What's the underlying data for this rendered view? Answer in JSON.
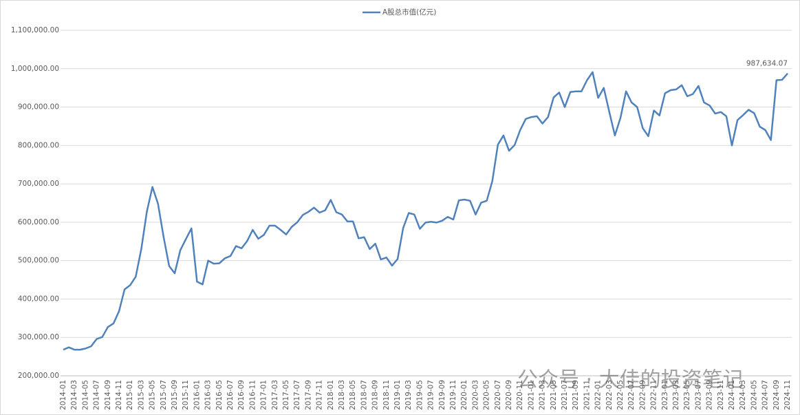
{
  "chart_data": {
    "type": "line",
    "watermark": "公众号 · 大佳的投资笔记",
    "categories": [
      "2014-01",
      null,
      "2014-03",
      null,
      "2014-05",
      null,
      "2014-07",
      null,
      "2014-09",
      null,
      "2014-11",
      null,
      "2015-01",
      null,
      "2015-03",
      null,
      "2015-05",
      null,
      "2015-07",
      null,
      "2015-09",
      null,
      "2015-11",
      null,
      "2016-01",
      null,
      "2016-03",
      null,
      "2016-05",
      null,
      "2016-07",
      null,
      "2016-09",
      null,
      "2016-11",
      null,
      "2017-01",
      null,
      "2017-03",
      null,
      "2017-05",
      null,
      "2017-07",
      null,
      "2017-09",
      null,
      "2017-11",
      null,
      "2018-01",
      null,
      "2018-03",
      null,
      "2018-05",
      null,
      "2018-07",
      null,
      "2018-09",
      null,
      "2018-11",
      null,
      "2019-01",
      null,
      "2019-03",
      null,
      "2019-05",
      null,
      "2019-07",
      null,
      "2019-09",
      null,
      "2019-11",
      null,
      "2020-01",
      null,
      "2020-03",
      null,
      "2020-05",
      null,
      "2020-07",
      null,
      "2020-09",
      null,
      "2020-11",
      null,
      "2021-01",
      null,
      "2021-03",
      null,
      "2021-05",
      null,
      "2021-07",
      null,
      "2021-09",
      null,
      "2021-11",
      null,
      "2022-01",
      null,
      "2022-03",
      null,
      "2022-05",
      null,
      "2022-07",
      null,
      "2022-09",
      null,
      "2022-11",
      null,
      "2023-01",
      null,
      "2023-03",
      null,
      "2023-05",
      null,
      "2023-07",
      null,
      "2023-09",
      null,
      "2023-11",
      null,
      "2024-01",
      null,
      "2024-03",
      null,
      "2024-05",
      null,
      "2024-07",
      null,
      "2024-09",
      null,
      "2024-11"
    ],
    "series": [
      {
        "name": "A股总市值(亿元)",
        "color": "#4f81bd",
        "values": [
          268000,
          274000,
          268000,
          268000,
          271000,
          277000,
          296000,
          301000,
          327000,
          336000,
          368000,
          425000,
          436000,
          458000,
          530000,
          628000,
          692000,
          648000,
          562000,
          486000,
          467000,
          527000,
          556000,
          584000,
          445000,
          438000,
          500000,
          492000,
          493000,
          506000,
          512000,
          538000,
          532000,
          551000,
          580000,
          557000,
          567000,
          591000,
          591000,
          580000,
          568000,
          588000,
          600000,
          619000,
          627000,
          638000,
          625000,
          631000,
          658000,
          626000,
          620000,
          602000,
          602000,
          558000,
          561000,
          530000,
          544000,
          503000,
          508000,
          487000,
          504000,
          585000,
          624000,
          620000,
          583000,
          599000,
          601000,
          599000,
          604000,
          614000,
          607000,
          657000,
          659000,
          656000,
          620000,
          651000,
          656000,
          707000,
          802000,
          826000,
          786000,
          801000,
          840000,
          869000,
          874000,
          876000,
          857000,
          874000,
          925000,
          938000,
          900000,
          939000,
          941000,
          941000,
          970000,
          991000,
          924000,
          950000,
          887000,
          826000,
          872000,
          941000,
          912000,
          900000,
          845000,
          824000,
          891000,
          878000,
          936000,
          944000,
          946000,
          957000,
          928000,
          934000,
          955000,
          912000,
          904000,
          883000,
          887000,
          876000,
          800000,
          866000,
          879000,
          893000,
          884000,
          849000,
          840000,
          814000,
          970000,
          971000,
          987634.07
        ],
        "value_labels": [
          null,
          null,
          null,
          null,
          null,
          null,
          null,
          null,
          null,
          null,
          null,
          null,
          null,
          null,
          null,
          null,
          null,
          null,
          null,
          null,
          null,
          null,
          null,
          null,
          null,
          null,
          null,
          null,
          null,
          null,
          null,
          null,
          null,
          null,
          null,
          null,
          null,
          null,
          null,
          null,
          null,
          null,
          null,
          null,
          null,
          null,
          null,
          null,
          null,
          null,
          null,
          null,
          null,
          null,
          null,
          null,
          null,
          null,
          null,
          null,
          null,
          null,
          null,
          null,
          null,
          null,
          null,
          null,
          null,
          null,
          null,
          null,
          null,
          null,
          null,
          null,
          null,
          null,
          null,
          null,
          null,
          null,
          null,
          null,
          null,
          null,
          null,
          null,
          null,
          null,
          null,
          null,
          null,
          null,
          null,
          null,
          null,
          null,
          null,
          null,
          null,
          null,
          null,
          null,
          null,
          null,
          null,
          null,
          null,
          null,
          null,
          null,
          null,
          null,
          null,
          null,
          null,
          null,
          null,
          null,
          null,
          null,
          null,
          null,
          null,
          null,
          null,
          null,
          null,
          null,
          "987,634.07"
        ]
      }
    ],
    "ylim": [
      200000,
      1100000
    ],
    "yticks": [
      {
        "value": 200000,
        "label": "200,000.00"
      },
      {
        "value": 300000,
        "label": "300,000.00"
      },
      {
        "value": 400000,
        "label": "400,000.00"
      },
      {
        "value": 500000,
        "label": "500,000.00"
      },
      {
        "value": 600000,
        "label": "600,000.00"
      },
      {
        "value": 700000,
        "label": "700,000.00"
      },
      {
        "value": 800000,
        "label": "800,000.00"
      },
      {
        "value": 900000,
        "label": "900,000.00"
      },
      {
        "value": 1000000,
        "label": "1,000,000.00"
      },
      {
        "value": 1100000,
        "label": "1,100,000.00"
      }
    ],
    "grid": true,
    "legend": "top"
  }
}
